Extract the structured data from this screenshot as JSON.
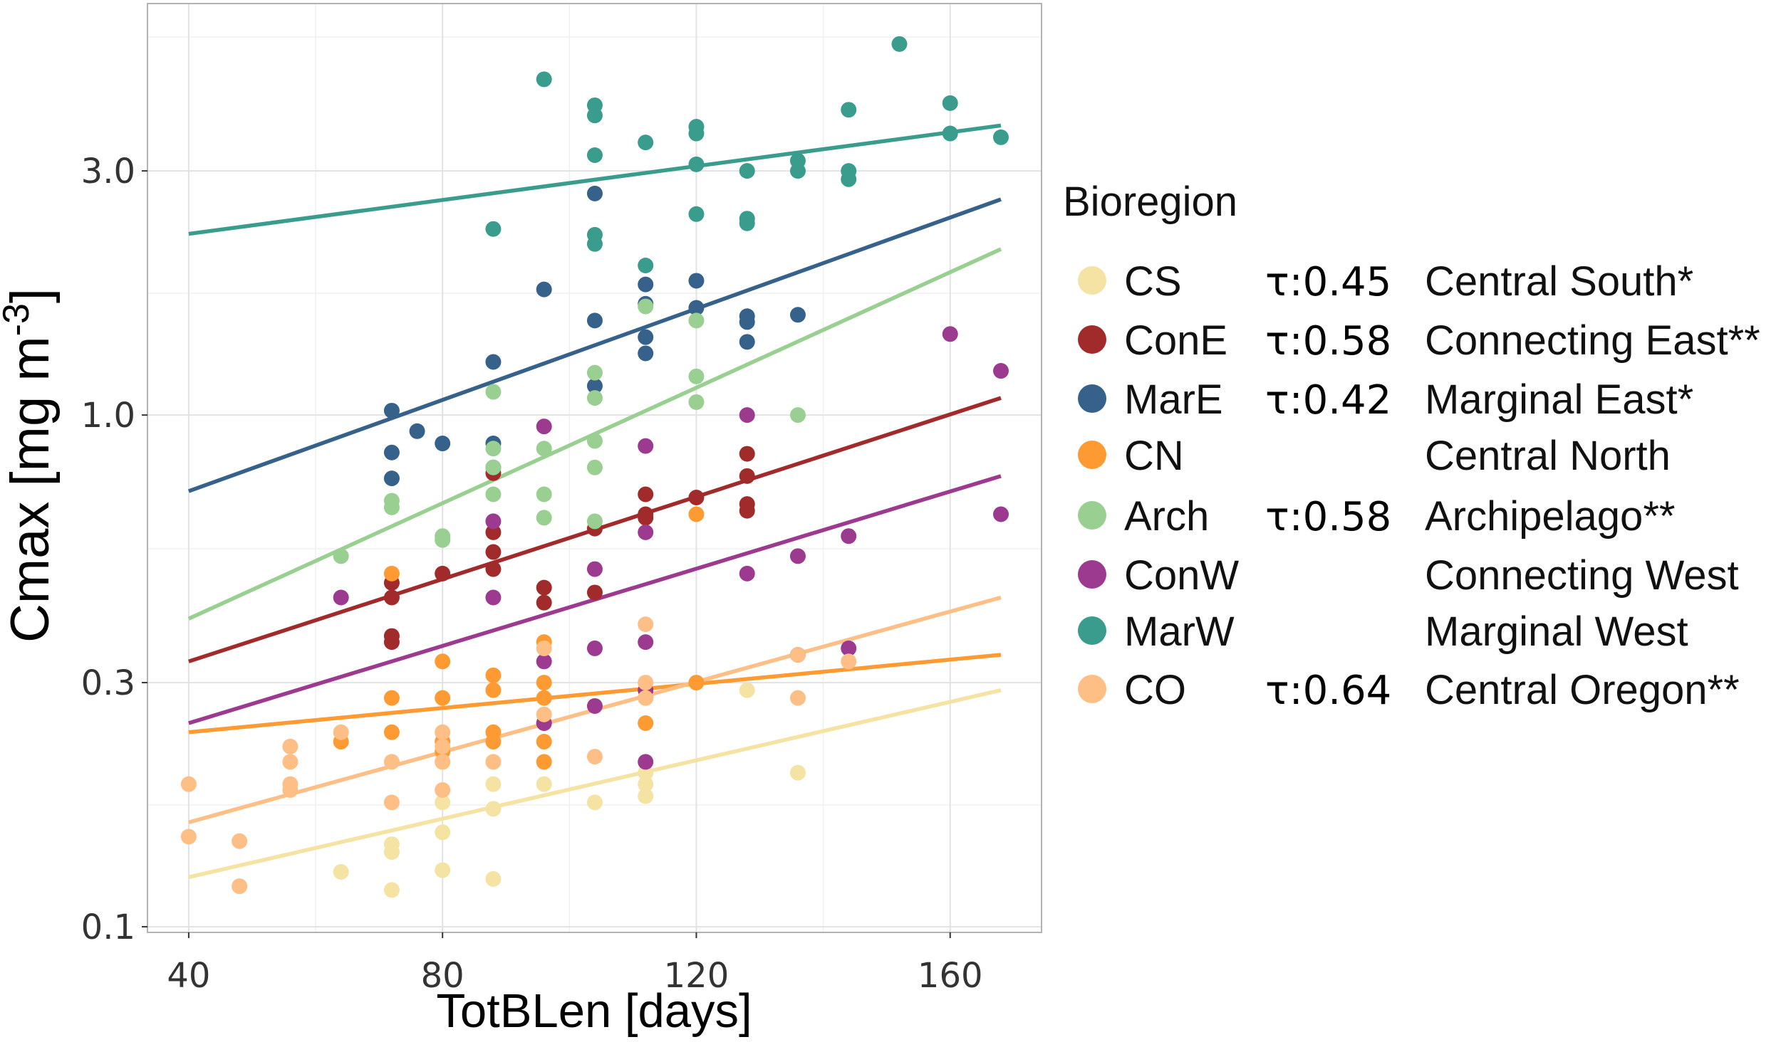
{
  "chart_data": {
    "type": "scatter",
    "title": "",
    "xlabel": "TotBLen [days]",
    "ylabel": "Cmax [mg m-3]",
    "ylabel_superscript": "-3",
    "xlim": [
      33.5,
      174.4
    ],
    "ylim": [
      0.0975,
      6.37
    ],
    "yscale": "log10",
    "xticks": [
      40,
      80,
      120,
      160
    ],
    "xtick_labels": [
      "40",
      "80",
      "120",
      "160"
    ],
    "xminor": [
      60,
      100,
      140
    ],
    "yticks": [
      0.1,
      0.3,
      1.0,
      3.0
    ],
    "ytick_labels": [
      "0.1",
      "0.3",
      "1.0",
      "3.0"
    ],
    "yminor": [
      0.173,
      0.548,
      1.73,
      5.48
    ],
    "grid": true,
    "legend": {
      "title": "Bioregion",
      "placement": "right"
    },
    "series": [
      {
        "name": "CS",
        "tau": "τ:0.45",
        "label": "Central South*",
        "color": "#f5e3a3",
        "fit": [
          [
            40,
            0.125
          ],
          [
            168,
            0.29
          ]
        ],
        "points": [
          [
            64,
            0.128
          ],
          [
            72,
            0.145
          ],
          [
            72,
            0.14
          ],
          [
            72,
            0.118
          ],
          [
            80,
            0.21
          ],
          [
            80,
            0.175
          ],
          [
            80,
            0.153
          ],
          [
            80,
            0.129
          ],
          [
            88,
            0.19
          ],
          [
            88,
            0.17
          ],
          [
            88,
            0.124
          ],
          [
            96,
            0.19
          ],
          [
            104,
            0.175
          ],
          [
            112,
            0.2
          ],
          [
            112,
            0.19
          ],
          [
            112,
            0.18
          ],
          [
            128,
            0.29
          ],
          [
            136,
            0.2
          ]
        ]
      },
      {
        "name": "ConE",
        "tau": "τ:0.58",
        "label": "Connecting  East**",
        "color": "#a12a2b",
        "fit": [
          [
            40,
            0.33
          ],
          [
            168,
            1.08
          ]
        ],
        "points": [
          [
            72,
            0.47
          ],
          [
            72,
            0.44
          ],
          [
            72,
            0.37
          ],
          [
            72,
            0.36
          ],
          [
            80,
            0.49
          ],
          [
            88,
            0.77
          ],
          [
            88,
            0.59
          ],
          [
            88,
            0.54
          ],
          [
            88,
            0.5
          ],
          [
            96,
            0.46
          ],
          [
            96,
            0.43
          ],
          [
            104,
            0.6
          ],
          [
            104,
            0.45
          ],
          [
            112,
            0.7
          ],
          [
            112,
            0.64
          ],
          [
            112,
            0.63
          ],
          [
            120,
            0.69
          ],
          [
            128,
            0.84
          ],
          [
            128,
            0.76
          ],
          [
            128,
            0.67
          ],
          [
            128,
            0.65
          ]
        ]
      },
      {
        "name": "MarE",
        "tau": "τ:0.42",
        "label": "Marginal East*",
        "color": "#35618a",
        "fit": [
          [
            40,
            0.71
          ],
          [
            168,
            2.64
          ]
        ],
        "points": [
          [
            72,
            1.02
          ],
          [
            72,
            0.845
          ],
          [
            72,
            0.752
          ],
          [
            76,
            0.93
          ],
          [
            80,
            0.88
          ],
          [
            88,
            1.27
          ],
          [
            88,
            0.88
          ],
          [
            88,
            0.79
          ],
          [
            96,
            1.76
          ],
          [
            104,
            2.71
          ],
          [
            104,
            1.53
          ],
          [
            104,
            1.14
          ],
          [
            112,
            1.8
          ],
          [
            112,
            1.42
          ],
          [
            112,
            1.32
          ],
          [
            112,
            1.65
          ],
          [
            120,
            1.83
          ],
          [
            120,
            1.62
          ],
          [
            128,
            1.56
          ],
          [
            128,
            1.52
          ],
          [
            128,
            1.39
          ],
          [
            136,
            1.57
          ]
        ]
      },
      {
        "name": "CN",
        "tau": "",
        "label": "Central North",
        "color": "#fd9b32",
        "fit": [
          [
            40,
            0.24
          ],
          [
            168,
            0.34
          ]
        ],
        "points": [
          [
            64,
            0.23
          ],
          [
            72,
            0.49
          ],
          [
            72,
            0.28
          ],
          [
            72,
            0.24
          ],
          [
            80,
            0.33
          ],
          [
            80,
            0.28
          ],
          [
            80,
            0.23
          ],
          [
            80,
            0.22
          ],
          [
            88,
            0.31
          ],
          [
            88,
            0.29
          ],
          [
            88,
            0.24
          ],
          [
            88,
            0.23
          ],
          [
            96,
            0.36
          ],
          [
            96,
            0.3
          ],
          [
            96,
            0.28
          ],
          [
            96,
            0.25
          ],
          [
            96,
            0.23
          ],
          [
            96,
            0.21
          ],
          [
            112,
            0.28
          ],
          [
            112,
            0.25
          ],
          [
            120,
            0.64
          ],
          [
            120,
            0.3
          ]
        ]
      },
      {
        "name": "Arch",
        "tau": "τ:0.58",
        "label": "Archipelago**",
        "color": "#99d091",
        "fit": [
          [
            40,
            0.4
          ],
          [
            168,
            2.11
          ]
        ],
        "points": [
          [
            64,
            0.53
          ],
          [
            72,
            0.68
          ],
          [
            72,
            0.66
          ],
          [
            80,
            0.58
          ],
          [
            80,
            0.57
          ],
          [
            88,
            1.11
          ],
          [
            88,
            0.86
          ],
          [
            88,
            0.79
          ],
          [
            88,
            0.7
          ],
          [
            96,
            0.86
          ],
          [
            96,
            0.7
          ],
          [
            96,
            0.63
          ],
          [
            104,
            1.21
          ],
          [
            104,
            1.08
          ],
          [
            104,
            0.89
          ],
          [
            104,
            0.79
          ],
          [
            104,
            0.62
          ],
          [
            112,
            1.63
          ],
          [
            120,
            1.53
          ],
          [
            120,
            1.19
          ],
          [
            120,
            1.06
          ],
          [
            136,
            1.0
          ]
        ]
      },
      {
        "name": "ConW",
        "tau": "",
        "label": "Connecting  West",
        "color": "#9c3a90",
        "fit": [
          [
            40,
            0.25
          ],
          [
            168,
            0.76
          ]
        ],
        "points": [
          [
            64,
            0.44
          ],
          [
            88,
            0.62
          ],
          [
            88,
            0.44
          ],
          [
            96,
            0.95
          ],
          [
            96,
            0.33
          ],
          [
            96,
            0.25
          ],
          [
            104,
            0.5
          ],
          [
            104,
            0.35
          ],
          [
            104,
            0.27
          ],
          [
            112,
            0.87
          ],
          [
            112,
            0.59
          ],
          [
            112,
            0.36
          ],
          [
            112,
            0.29
          ],
          [
            112,
            0.21
          ],
          [
            128,
            1.0
          ],
          [
            128,
            0.49
          ],
          [
            136,
            0.53
          ],
          [
            136,
            0.34
          ],
          [
            144,
            0.58
          ],
          [
            144,
            0.35
          ],
          [
            160,
            1.44
          ],
          [
            168,
            1.22
          ],
          [
            168,
            0.64
          ]
        ]
      },
      {
        "name": "MarW",
        "tau": "",
        "label": "Marginal West",
        "color": "#3a9c8c",
        "fit": [
          [
            40,
            2.26
          ],
          [
            168,
            3.68
          ]
        ],
        "points": [
          [
            88,
            2.31
          ],
          [
            96,
            4.53
          ],
          [
            104,
            4.03
          ],
          [
            104,
            3.85
          ],
          [
            104,
            3.22
          ],
          [
            104,
            2.25
          ],
          [
            104,
            2.16
          ],
          [
            112,
            3.41
          ],
          [
            112,
            1.96
          ],
          [
            120,
            3.66
          ],
          [
            120,
            3.55
          ],
          [
            120,
            3.09
          ],
          [
            120,
            2.47
          ],
          [
            128,
            3.0
          ],
          [
            128,
            2.42
          ],
          [
            128,
            2.37
          ],
          [
            136,
            3.14
          ],
          [
            136,
            3.0
          ],
          [
            144,
            3.95
          ],
          [
            144,
            3.0
          ],
          [
            144,
            2.89
          ],
          [
            152,
            5.31
          ],
          [
            160,
            4.07
          ],
          [
            160,
            3.55
          ],
          [
            168,
            3.49
          ]
        ]
      },
      {
        "name": "CO",
        "tau": "τ:0.64",
        "label": "Central Oregon**",
        "color": "#fdbf86",
        "fit": [
          [
            40,
            0.16
          ],
          [
            168,
            0.44
          ]
        ],
        "points": [
          [
            40,
            0.19
          ],
          [
            40,
            0.15
          ],
          [
            48,
            0.147
          ],
          [
            48,
            0.12
          ],
          [
            56,
            0.225
          ],
          [
            56,
            0.21
          ],
          [
            56,
            0.19
          ],
          [
            56,
            0.185
          ],
          [
            64,
            0.24
          ],
          [
            72,
            0.21
          ],
          [
            72,
            0.175
          ],
          [
            80,
            0.24
          ],
          [
            80,
            0.225
          ],
          [
            80,
            0.21
          ],
          [
            80,
            0.185
          ],
          [
            88,
            0.21
          ],
          [
            96,
            0.35
          ],
          [
            96,
            0.26
          ],
          [
            104,
            0.215
          ],
          [
            112,
            0.39
          ],
          [
            112,
            0.3
          ],
          [
            112,
            0.28
          ],
          [
            136,
            0.34
          ],
          [
            136,
            0.28
          ],
          [
            144,
            0.33
          ]
        ]
      }
    ]
  }
}
